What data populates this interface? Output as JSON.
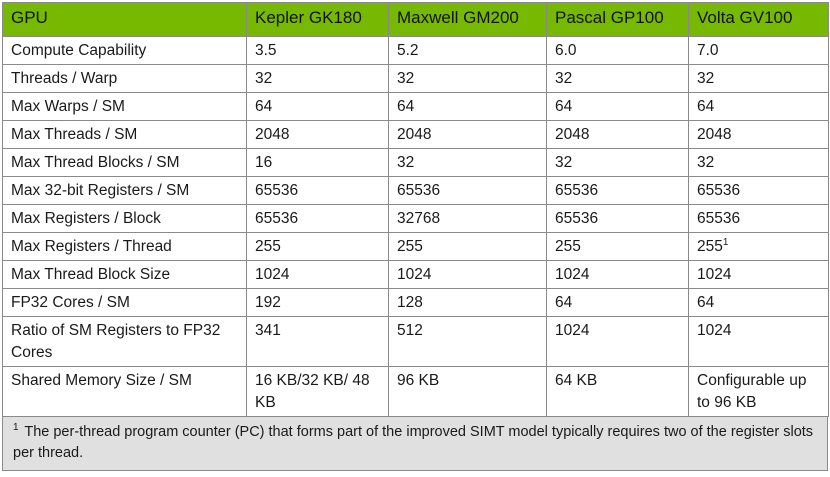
{
  "table": {
    "headers": [
      "GPU",
      "Kepler GK180",
      "Maxwell GM200",
      "Pascal GP100",
      "Volta GV100"
    ],
    "rows": [
      {
        "label": "Compute Capability",
        "values": [
          "3.5",
          "5.2",
          "6.0",
          "7.0"
        ]
      },
      {
        "label": "Threads / Warp",
        "values": [
          "32",
          "32",
          "32",
          "32"
        ]
      },
      {
        "label": "Max Warps / SM",
        "values": [
          "64",
          "64",
          "64",
          "64"
        ]
      },
      {
        "label": "Max Threads / SM",
        "values": [
          "2048",
          "2048",
          "2048",
          "2048"
        ]
      },
      {
        "label": "Max Thread Blocks / SM",
        "values": [
          "16",
          "32",
          "32",
          "32"
        ]
      },
      {
        "label": "Max 32-bit Registers / SM",
        "values": [
          "65536",
          "65536",
          "65536",
          "65536"
        ]
      },
      {
        "label": "Max Registers / Block",
        "values": [
          "65536",
          "32768",
          "65536",
          "65536"
        ]
      },
      {
        "label": "Max Registers / Thread",
        "values": [
          "255",
          "255",
          "255",
          "255"
        ],
        "last_value_footnote_marker": "1"
      },
      {
        "label": "Max Thread Block Size",
        "values": [
          "1024",
          "1024",
          "1024",
          "1024"
        ]
      },
      {
        "label": "FP32 Cores / SM",
        "values": [
          "192",
          "128",
          "64",
          "64"
        ]
      },
      {
        "label": "Ratio of SM Registers to FP32 Cores",
        "values": [
          "341",
          "512",
          "1024",
          "1024"
        ]
      },
      {
        "label": "Shared Memory Size / SM",
        "values": [
          "16 KB/32 KB/ 48 KB",
          "96 KB",
          "64 KB",
          "Configurable up to 96 KB"
        ]
      }
    ],
    "header_color": "#76b900"
  },
  "footnote": {
    "marker": "1",
    "text": "The per-thread program counter (PC) that forms part of the improved SIMT model typically requires two of the register slots per thread.",
    "background": "#e0e0e0"
  }
}
